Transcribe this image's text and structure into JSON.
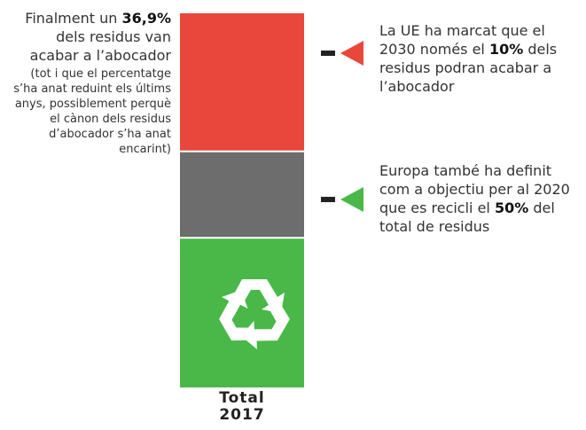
{
  "chart_data": {
    "type": "stacked_bar",
    "categories": [
      "Total\n2017"
    ],
    "series": [
      {
        "color": "#49b848",
        "values": [
          40
        ]
      },
      {
        "color": "#6d6d6d",
        "values": [
          23.1
        ]
      },
      {
        "color": "#e9473b",
        "values": [
          36.9
        ]
      }
    ],
    "ylim": [
      0,
      100
    ],
    "annotations": {
      "left": {
        "before": "Finalment un",
        "bold": "36,9%",
        "after": "dels residus van acabar a l’abocador",
        "note": "(tot i que el percentatge s’ha anat reduint els últims anys, possiblement perquè el cànon dels residus d’abocador s’ha anat encarint)"
      },
      "right_top": {
        "before": "La UE ha marcat que el 2030 només el",
        "bold": "10%",
        "after": "dels residus podran acabar a l’abocador"
      },
      "right_bottom": {
        "before": "Europa també ha definit com a objectiu per al 2020 que es recicli el",
        "bold": "50%",
        "after": "del total de residus"
      }
    }
  }
}
